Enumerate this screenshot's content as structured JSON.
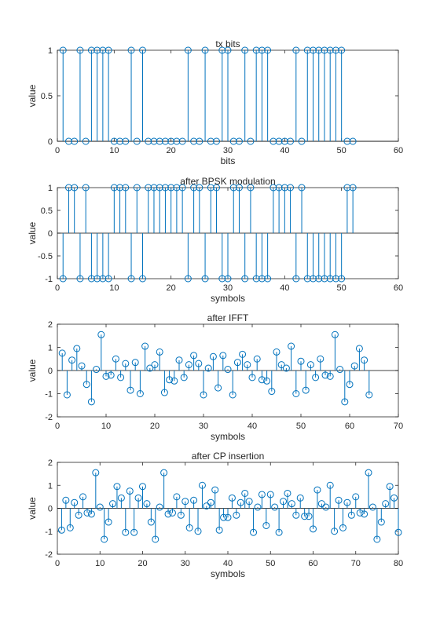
{
  "chart_data": [
    {
      "type": "stem",
      "title": "tx bits",
      "xlabel": "bits",
      "ylabel": "value",
      "xlim": [
        0,
        60
      ],
      "ylim": [
        0,
        1
      ],
      "xticks": [
        0,
        10,
        20,
        30,
        40,
        50,
        60
      ],
      "yticks": [
        0,
        0.5,
        1
      ],
      "ytick_labels": [
        "0",
        "0.5",
        "1"
      ],
      "x": [
        1,
        2,
        3,
        4,
        5,
        6,
        7,
        8,
        9,
        10,
        11,
        12,
        13,
        14,
        15,
        16,
        17,
        18,
        19,
        20,
        21,
        22,
        23,
        24,
        25,
        26,
        27,
        28,
        29,
        30,
        31,
        32,
        33,
        34,
        35,
        36,
        37,
        38,
        39,
        40,
        41,
        42,
        43,
        44,
        45,
        46,
        47,
        48,
        49,
        50,
        51,
        52
      ],
      "values": [
        1,
        0,
        0,
        1,
        0,
        1,
        1,
        1,
        1,
        0,
        0,
        0,
        1,
        0,
        1,
        0,
        0,
        0,
        0,
        0,
        0,
        0,
        1,
        0,
        0,
        1,
        0,
        0,
        1,
        1,
        0,
        0,
        1,
        0,
        1,
        1,
        1,
        0,
        0,
        0,
        0,
        1,
        0,
        1,
        1,
        1,
        1,
        1,
        1,
        1,
        0,
        0
      ]
    },
    {
      "type": "stem",
      "title": "after BPSK modulation",
      "xlabel": "symbols",
      "ylabel": "value",
      "xlim": [
        0,
        60
      ],
      "ylim": [
        -1,
        1
      ],
      "xticks": [
        0,
        10,
        20,
        30,
        40,
        50,
        60
      ],
      "yticks": [
        -1,
        -0.5,
        0,
        0.5,
        1
      ],
      "ytick_labels": [
        "-1",
        "-0.5",
        "0",
        "0.5",
        "1"
      ],
      "x": [
        1,
        2,
        3,
        4,
        5,
        6,
        7,
        8,
        9,
        10,
        11,
        12,
        13,
        14,
        15,
        16,
        17,
        18,
        19,
        20,
        21,
        22,
        23,
        24,
        25,
        26,
        27,
        28,
        29,
        30,
        31,
        32,
        33,
        34,
        35,
        36,
        37,
        38,
        39,
        40,
        41,
        42,
        43,
        44,
        45,
        46,
        47,
        48,
        49,
        50,
        51,
        52
      ],
      "values": [
        -1,
        1,
        1,
        -1,
        1,
        -1,
        -1,
        -1,
        -1,
        1,
        1,
        1,
        -1,
        1,
        -1,
        1,
        1,
        1,
        1,
        1,
        1,
        1,
        -1,
        1,
        1,
        -1,
        1,
        1,
        -1,
        -1,
        1,
        1,
        -1,
        1,
        -1,
        -1,
        -1,
        1,
        1,
        1,
        1,
        -1,
        1,
        -1,
        -1,
        -1,
        -1,
        -1,
        -1,
        -1,
        1,
        1
      ]
    },
    {
      "type": "stem",
      "title": "after IFFT",
      "xlabel": "symbols",
      "ylabel": "value",
      "xlim": [
        0,
        70
      ],
      "ylim": [
        -2,
        2
      ],
      "xticks": [
        0,
        10,
        20,
        30,
        40,
        50,
        60,
        70
      ],
      "yticks": [
        -2,
        -1,
        0,
        1,
        2
      ],
      "ytick_labels": [
        "-2",
        "-1",
        "0",
        "1",
        "2"
      ],
      "x": [
        1,
        2,
        3,
        4,
        5,
        6,
        7,
        8,
        9,
        10,
        11,
        12,
        13,
        14,
        15,
        16,
        17,
        18,
        19,
        20,
        21,
        22,
        23,
        24,
        25,
        26,
        27,
        28,
        29,
        30,
        31,
        32,
        33,
        34,
        35,
        36,
        37,
        38,
        39,
        40,
        41,
        42,
        43,
        44,
        45,
        46,
        47,
        48,
        49,
        50,
        51,
        52,
        53,
        54,
        55,
        56,
        57,
        58,
        59,
        60,
        61,
        62,
        63,
        64
      ],
      "values": [
        0.75,
        -1.05,
        0.45,
        0.95,
        0.2,
        -0.6,
        -1.35,
        0.05,
        1.55,
        -0.25,
        -0.2,
        0.5,
        -0.3,
        0.3,
        -0.85,
        0.35,
        -1.0,
        1.05,
        0.1,
        0.25,
        0.8,
        -0.95,
        -0.4,
        -0.45,
        0.45,
        -0.3,
        0.25,
        0.65,
        0.3,
        -1.05,
        0.1,
        0.6,
        -0.75,
        0.65,
        0.05,
        -1.05,
        0.35,
        0.7,
        0.25,
        -0.3,
        0.5,
        -0.4,
        -0.45,
        -0.9,
        0.8,
        0.25,
        0.1,
        1.05,
        -1.0,
        0.4,
        -0.85,
        0.25,
        -0.3,
        0.5,
        -0.2,
        -0.25,
        1.55,
        0.05,
        -1.35,
        -0.6,
        0.2,
        0.95,
        0.45,
        -1.05
      ]
    },
    {
      "type": "stem",
      "title": "after CP insertion",
      "xlabel": "symbols",
      "ylabel": "value",
      "xlim": [
        0,
        80
      ],
      "ylim": [
        -2,
        2
      ],
      "xticks": [
        0,
        10,
        20,
        30,
        40,
        50,
        60,
        70,
        80
      ],
      "yticks": [
        -2,
        -1,
        0,
        1,
        2
      ],
      "ytick_labels": [
        "-2",
        "-1",
        "0",
        "1",
        "2"
      ],
      "x": [
        1,
        2,
        3,
        4,
        5,
        6,
        7,
        8,
        9,
        10,
        11,
        12,
        13,
        14,
        15,
        16,
        17,
        18,
        19,
        20,
        21,
        22,
        23,
        24,
        25,
        26,
        27,
        28,
        29,
        30,
        31,
        32,
        33,
        34,
        35,
        36,
        37,
        38,
        39,
        40,
        41,
        42,
        43,
        44,
        45,
        46,
        47,
        48,
        49,
        50,
        51,
        52,
        53,
        54,
        55,
        56,
        57,
        58,
        59,
        60,
        61,
        62,
        63,
        64,
        65,
        66,
        67,
        68,
        69,
        70,
        71,
        72,
        73,
        74,
        75,
        76,
        77,
        78,
        79,
        80
      ],
      "values": [
        -0.95,
        0.35,
        -0.85,
        0.25,
        -0.3,
        0.5,
        -0.2,
        -0.25,
        1.55,
        0.05,
        -1.35,
        -0.6,
        0.2,
        0.95,
        0.45,
        -1.05,
        0.75,
        -1.05,
        0.45,
        0.95,
        0.2,
        -0.6,
        -1.35,
        0.05,
        1.55,
        -0.25,
        -0.2,
        0.5,
        -0.3,
        0.3,
        -0.85,
        0.35,
        -1.0,
        1.0,
        0.1,
        0.25,
        0.8,
        -0.95,
        -0.4,
        -0.4,
        0.45,
        -0.3,
        0.25,
        0.65,
        0.3,
        -1.05,
        0.05,
        0.6,
        -0.75,
        0.6,
        0.05,
        -1.05,
        0.3,
        0.65,
        0.2,
        -0.3,
        0.45,
        -0.35,
        -0.35,
        -0.9,
        0.8,
        0.2,
        0.05,
        1.0,
        -1.0,
        0.35,
        -0.85,
        0.25,
        -0.3,
        0.5,
        -0.2,
        -0.25,
        1.55,
        0.05,
        -1.35,
        -0.6,
        0.2,
        0.95,
        0.45,
        -1.05
      ]
    }
  ],
  "colors": {
    "stem": "#0072bd",
    "axis": "#262626",
    "baseline": "#000000",
    "background": "#ffffff"
  }
}
